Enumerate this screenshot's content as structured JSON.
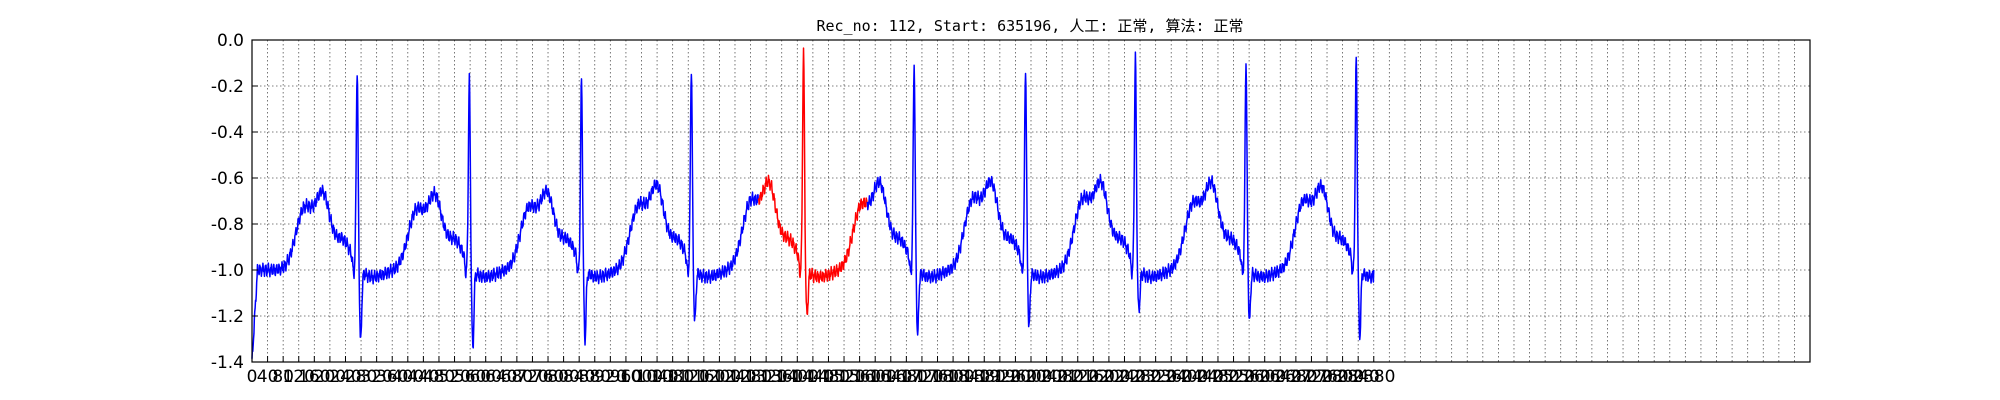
{
  "chart_data": {
    "type": "line",
    "title": "Rec_no: 112, Start: 635196, 人工: 正常, 算法: 正常",
    "xlim": [
      0,
      4000
    ],
    "ylim": [
      -1.4,
      0.0
    ],
    "grid": true,
    "x_tick_step": 40,
    "yticks": [
      0.0,
      -0.2,
      -0.4,
      -0.6,
      -0.8,
      -1.0,
      -1.2,
      -1.4
    ],
    "ytick_labels": [
      "0.0",
      "-0.2",
      "-0.4",
      "-0.6",
      "-0.8",
      "-1.0",
      "-1.2",
      "-1.4"
    ],
    "baseline": -1.0,
    "colors": {
      "normal": "#0000ff",
      "highlight": "#ff0000",
      "grid": "#555555"
    },
    "beats": [
      {
        "r": 270,
        "rpeak": -0.1,
        "s": -1.37,
        "p": -0.71,
        "t": -0.69
      },
      {
        "r": 558,
        "rpeak": -0.14,
        "s": -1.4,
        "p": -0.72,
        "t": -0.7
      },
      {
        "r": 846,
        "rpeak": -0.14,
        "s": -1.36,
        "p": -0.71,
        "t": -0.69
      },
      {
        "r": 1128,
        "rpeak": -0.09,
        "s": -1.28,
        "p": -0.7,
        "t": -0.66
      },
      {
        "r": 1416,
        "rpeak": -0.02,
        "s": -1.26,
        "p": -0.68,
        "t": -0.65
      },
      {
        "r": 1700,
        "rpeak": -0.07,
        "s": -1.34,
        "p": -0.7,
        "t": -0.65
      },
      {
        "r": 1986,
        "rpeak": -0.09,
        "s": -1.3,
        "p": -0.67,
        "t": -0.65
      },
      {
        "r": 2268,
        "rpeak": -0.04,
        "s": -1.24,
        "p": -0.67,
        "t": -0.65
      },
      {
        "r": 2552,
        "rpeak": -0.06,
        "s": -1.28,
        "p": -0.69,
        "t": -0.65
      },
      {
        "r": 2835,
        "rpeak": -0.05,
        "s": -1.35,
        "p": -0.68,
        "t": -0.67
      }
    ],
    "series": [
      {
        "color": "#0000ff",
        "x_range": [
          0,
          1300
        ]
      },
      {
        "color": "#ff0000",
        "x_range": [
          1300,
          1580
        ]
      },
      {
        "color": "#0000ff",
        "x_range": [
          1580,
          2880
        ]
      }
    ],
    "end": {
      "x": 2880,
      "y": -1.0
    }
  }
}
